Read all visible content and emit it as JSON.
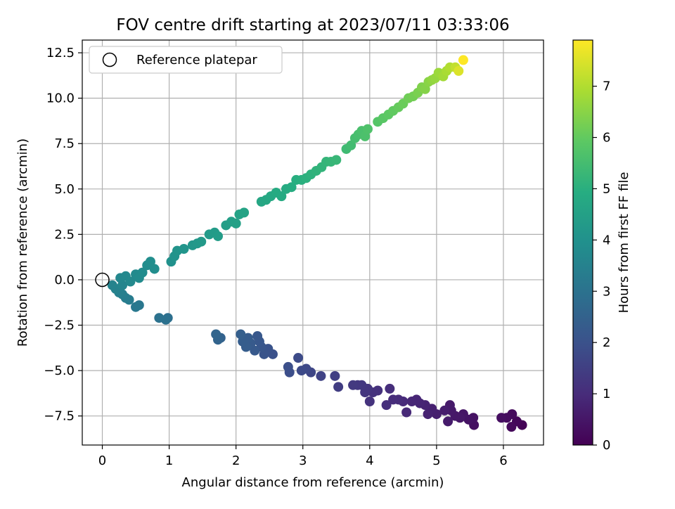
{
  "chart_data": {
    "type": "scatter",
    "title": "FOV centre drift starting at 2023/07/11 03:33:06",
    "xlabel": "Angular distance from reference (arcmin)",
    "ylabel": "Rotation from reference (arcmin)",
    "xlim": [
      -0.3,
      6.6
    ],
    "ylim": [
      -9.1,
      13.2
    ],
    "xticks": [
      0,
      1,
      2,
      3,
      4,
      5,
      6
    ],
    "xtick_labels": [
      "0",
      "1",
      "2",
      "3",
      "4",
      "5",
      "6"
    ],
    "yticks": [
      -7.5,
      -5.0,
      -2.5,
      0.0,
      2.5,
      5.0,
      7.5,
      10.0,
      12.5
    ],
    "ytick_labels": [
      "−7.5",
      "−5.0",
      "−2.5",
      "0.0",
      "2.5",
      "5.0",
      "7.5",
      "10.0",
      "12.5"
    ],
    "grid": true,
    "legend": {
      "position": "top-left",
      "label": "Reference platepar"
    },
    "colorbar": {
      "label": "Hours from first FF file",
      "colormap": "viridis",
      "range": [
        0,
        7.9
      ],
      "ticks": [
        0,
        1,
        2,
        3,
        4,
        5,
        6,
        7
      ],
      "tick_labels": [
        "0",
        "1",
        "2",
        "3",
        "4",
        "5",
        "6",
        "7"
      ]
    },
    "reference_point": {
      "x": 0,
      "y": 0
    },
    "points": [
      {
        "x": 6.28,
        "y": -8.0,
        "h": 0.05
      },
      {
        "x": 6.2,
        "y": -7.8,
        "h": 0.12
      },
      {
        "x": 6.12,
        "y": -8.1,
        "h": 0.18
      },
      {
        "x": 6.13,
        "y": -7.4,
        "h": 0.22
      },
      {
        "x": 6.05,
        "y": -7.6,
        "h": 0.25
      },
      {
        "x": 5.97,
        "y": -7.6,
        "h": 0.3
      },
      {
        "x": 5.56,
        "y": -8.0,
        "h": 0.35
      },
      {
        "x": 5.55,
        "y": -7.6,
        "h": 0.38
      },
      {
        "x": 5.48,
        "y": -7.7,
        "h": 0.42
      },
      {
        "x": 5.4,
        "y": -7.4,
        "h": 0.45
      },
      {
        "x": 5.35,
        "y": -7.6,
        "h": 0.5
      },
      {
        "x": 5.28,
        "y": -7.5,
        "h": 0.52
      },
      {
        "x": 5.22,
        "y": -7.2,
        "h": 0.55
      },
      {
        "x": 5.2,
        "y": -6.9,
        "h": 0.58
      },
      {
        "x": 5.17,
        "y": -7.8,
        "h": 0.6
      },
      {
        "x": 5.12,
        "y": -7.2,
        "h": 0.65
      },
      {
        "x": 5.0,
        "y": -7.4,
        "h": 0.68
      },
      {
        "x": 4.93,
        "y": -7.1,
        "h": 0.72
      },
      {
        "x": 4.87,
        "y": -7.4,
        "h": 0.75
      },
      {
        "x": 4.83,
        "y": -6.9,
        "h": 0.78
      },
      {
        "x": 4.75,
        "y": -6.8,
        "h": 0.82
      },
      {
        "x": 4.7,
        "y": -6.6,
        "h": 0.85
      },
      {
        "x": 4.63,
        "y": -6.7,
        "h": 0.88
      },
      {
        "x": 4.55,
        "y": -7.3,
        "h": 0.92
      },
      {
        "x": 4.5,
        "y": -6.7,
        "h": 0.95
      },
      {
        "x": 4.43,
        "y": -6.6,
        "h": 0.98
      },
      {
        "x": 4.35,
        "y": -6.6,
        "h": 1.02
      },
      {
        "x": 4.3,
        "y": -6.0,
        "h": 1.05
      },
      {
        "x": 4.25,
        "y": -6.9,
        "h": 1.08
      },
      {
        "x": 4.12,
        "y": -6.1,
        "h": 1.12
      },
      {
        "x": 4.05,
        "y": -6.2,
        "h": 1.15
      },
      {
        "x": 4.0,
        "y": -6.7,
        "h": 1.18
      },
      {
        "x": 3.97,
        "y": -6.0,
        "h": 1.22
      },
      {
        "x": 3.93,
        "y": -6.2,
        "h": 1.25
      },
      {
        "x": 3.88,
        "y": -5.8,
        "h": 1.28
      },
      {
        "x": 3.82,
        "y": -5.8,
        "h": 1.32
      },
      {
        "x": 3.75,
        "y": -5.8,
        "h": 1.35
      },
      {
        "x": 3.53,
        "y": -5.9,
        "h": 1.45
      },
      {
        "x": 3.48,
        "y": -5.3,
        "h": 1.5
      },
      {
        "x": 3.27,
        "y": -5.3,
        "h": 1.6
      },
      {
        "x": 3.12,
        "y": -5.1,
        "h": 1.68
      },
      {
        "x": 3.05,
        "y": -4.9,
        "h": 1.75
      },
      {
        "x": 2.98,
        "y": -5.0,
        "h": 1.78
      },
      {
        "x": 2.93,
        "y": -4.3,
        "h": 1.82
      },
      {
        "x": 2.8,
        "y": -5.1,
        "h": 1.9
      },
      {
        "x": 2.78,
        "y": -4.8,
        "h": 1.92
      },
      {
        "x": 2.55,
        "y": -4.1,
        "h": 2.0
      },
      {
        "x": 2.48,
        "y": -3.8,
        "h": 2.05
      },
      {
        "x": 2.42,
        "y": -4.1,
        "h": 2.08
      },
      {
        "x": 2.38,
        "y": -3.7,
        "h": 2.12
      },
      {
        "x": 2.35,
        "y": -3.4,
        "h": 2.15
      },
      {
        "x": 2.32,
        "y": -3.1,
        "h": 2.2
      },
      {
        "x": 2.28,
        "y": -3.9,
        "h": 2.22
      },
      {
        "x": 2.22,
        "y": -3.5,
        "h": 2.26
      },
      {
        "x": 2.18,
        "y": -3.2,
        "h": 2.3
      },
      {
        "x": 2.15,
        "y": -3.7,
        "h": 2.33
      },
      {
        "x": 2.1,
        "y": -3.4,
        "h": 2.36
      },
      {
        "x": 2.07,
        "y": -3.0,
        "h": 2.4
      },
      {
        "x": 1.77,
        "y": -3.2,
        "h": 2.5
      },
      {
        "x": 1.73,
        "y": -3.3,
        "h": 2.55
      },
      {
        "x": 1.7,
        "y": -3.0,
        "h": 2.6
      },
      {
        "x": 0.98,
        "y": -2.1,
        "h": 2.9
      },
      {
        "x": 0.95,
        "y": -2.2,
        "h": 2.95
      },
      {
        "x": 0.85,
        "y": -2.1,
        "h": 3.0
      },
      {
        "x": 0.55,
        "y": -1.4,
        "h": 3.15
      },
      {
        "x": 0.5,
        "y": -1.5,
        "h": 3.2
      },
      {
        "x": 0.4,
        "y": -1.1,
        "h": 3.3
      },
      {
        "x": 0.35,
        "y": -1.0,
        "h": 3.35
      },
      {
        "x": 0.3,
        "y": -0.8,
        "h": 3.4
      },
      {
        "x": 0.25,
        "y": -0.7,
        "h": 3.45
      },
      {
        "x": 0.2,
        "y": -0.5,
        "h": 3.5
      },
      {
        "x": 0.15,
        "y": -0.3,
        "h": 3.55
      },
      {
        "x": 0.3,
        "y": -0.3,
        "h": 3.6
      },
      {
        "x": 0.27,
        "y": 0.1,
        "h": 3.65
      },
      {
        "x": 0.35,
        "y": 0.2,
        "h": 3.7
      },
      {
        "x": 0.42,
        "y": -0.1,
        "h": 3.72
      },
      {
        "x": 0.5,
        "y": 0.3,
        "h": 3.75
      },
      {
        "x": 0.55,
        "y": 0.1,
        "h": 3.78
      },
      {
        "x": 0.6,
        "y": 0.4,
        "h": 3.82
      },
      {
        "x": 0.67,
        "y": 0.8,
        "h": 3.85
      },
      {
        "x": 0.72,
        "y": 1.0,
        "h": 3.88
      },
      {
        "x": 0.78,
        "y": 0.6,
        "h": 3.9
      },
      {
        "x": 1.03,
        "y": 1.0,
        "h": 4.0
      },
      {
        "x": 1.08,
        "y": 1.3,
        "h": 4.05
      },
      {
        "x": 1.12,
        "y": 1.6,
        "h": 4.08
      },
      {
        "x": 1.22,
        "y": 1.7,
        "h": 4.12
      },
      {
        "x": 1.35,
        "y": 1.9,
        "h": 4.18
      },
      {
        "x": 1.42,
        "y": 2.0,
        "h": 4.22
      },
      {
        "x": 1.48,
        "y": 2.1,
        "h": 4.25
      },
      {
        "x": 1.6,
        "y": 2.5,
        "h": 4.3
      },
      {
        "x": 1.68,
        "y": 2.6,
        "h": 4.33
      },
      {
        "x": 1.73,
        "y": 2.4,
        "h": 4.36
      },
      {
        "x": 1.85,
        "y": 3.0,
        "h": 4.42
      },
      {
        "x": 1.93,
        "y": 3.2,
        "h": 4.46
      },
      {
        "x": 2.0,
        "y": 3.1,
        "h": 4.5
      },
      {
        "x": 2.05,
        "y": 3.6,
        "h": 4.55
      },
      {
        "x": 2.12,
        "y": 3.7,
        "h": 4.58
      },
      {
        "x": 2.38,
        "y": 4.3,
        "h": 4.7
      },
      {
        "x": 2.45,
        "y": 4.4,
        "h": 4.74
      },
      {
        "x": 2.52,
        "y": 4.6,
        "h": 4.78
      },
      {
        "x": 2.6,
        "y": 4.8,
        "h": 4.82
      },
      {
        "x": 2.68,
        "y": 4.6,
        "h": 4.85
      },
      {
        "x": 2.75,
        "y": 5.0,
        "h": 4.88
      },
      {
        "x": 2.83,
        "y": 5.1,
        "h": 4.92
      },
      {
        "x": 2.9,
        "y": 5.5,
        "h": 4.96
      },
      {
        "x": 2.98,
        "y": 5.5,
        "h": 5.0
      },
      {
        "x": 3.05,
        "y": 5.6,
        "h": 5.04
      },
      {
        "x": 3.12,
        "y": 5.8,
        "h": 5.08
      },
      {
        "x": 3.2,
        "y": 6.0,
        "h": 5.12
      },
      {
        "x": 3.28,
        "y": 6.2,
        "h": 5.16
      },
      {
        "x": 3.35,
        "y": 6.5,
        "h": 5.2
      },
      {
        "x": 3.42,
        "y": 6.5,
        "h": 5.24
      },
      {
        "x": 3.5,
        "y": 6.6,
        "h": 5.28
      },
      {
        "x": 3.65,
        "y": 7.2,
        "h": 5.4
      },
      {
        "x": 3.72,
        "y": 7.4,
        "h": 5.46
      },
      {
        "x": 3.78,
        "y": 7.8,
        "h": 5.52
      },
      {
        "x": 3.83,
        "y": 8.0,
        "h": 5.56
      },
      {
        "x": 3.88,
        "y": 8.2,
        "h": 5.6
      },
      {
        "x": 3.93,
        "y": 7.9,
        "h": 5.64
      },
      {
        "x": 3.97,
        "y": 8.3,
        "h": 5.68
      },
      {
        "x": 4.12,
        "y": 8.7,
        "h": 5.8
      },
      {
        "x": 4.2,
        "y": 8.9,
        "h": 5.86
      },
      {
        "x": 4.28,
        "y": 9.1,
        "h": 5.92
      },
      {
        "x": 4.35,
        "y": 9.3,
        "h": 5.98
      },
      {
        "x": 4.43,
        "y": 9.5,
        "h": 6.04
      },
      {
        "x": 4.5,
        "y": 9.7,
        "h": 6.1
      },
      {
        "x": 4.58,
        "y": 10.0,
        "h": 6.16
      },
      {
        "x": 4.65,
        "y": 10.1,
        "h": 6.22
      },
      {
        "x": 4.72,
        "y": 10.3,
        "h": 6.3
      },
      {
        "x": 4.78,
        "y": 10.6,
        "h": 6.38
      },
      {
        "x": 4.83,
        "y": 10.5,
        "h": 6.44
      },
      {
        "x": 4.88,
        "y": 10.9,
        "h": 6.5
      },
      {
        "x": 4.93,
        "y": 11.0,
        "h": 6.58
      },
      {
        "x": 4.98,
        "y": 11.1,
        "h": 6.66
      },
      {
        "x": 5.03,
        "y": 11.4,
        "h": 6.74
      },
      {
        "x": 5.1,
        "y": 11.2,
        "h": 6.82
      },
      {
        "x": 5.15,
        "y": 11.5,
        "h": 6.9
      },
      {
        "x": 5.2,
        "y": 11.7,
        "h": 7.0
      },
      {
        "x": 5.28,
        "y": 11.7,
        "h": 7.2
      },
      {
        "x": 5.33,
        "y": 11.5,
        "h": 7.5
      },
      {
        "x": 5.4,
        "y": 12.1,
        "h": 7.9
      }
    ]
  }
}
